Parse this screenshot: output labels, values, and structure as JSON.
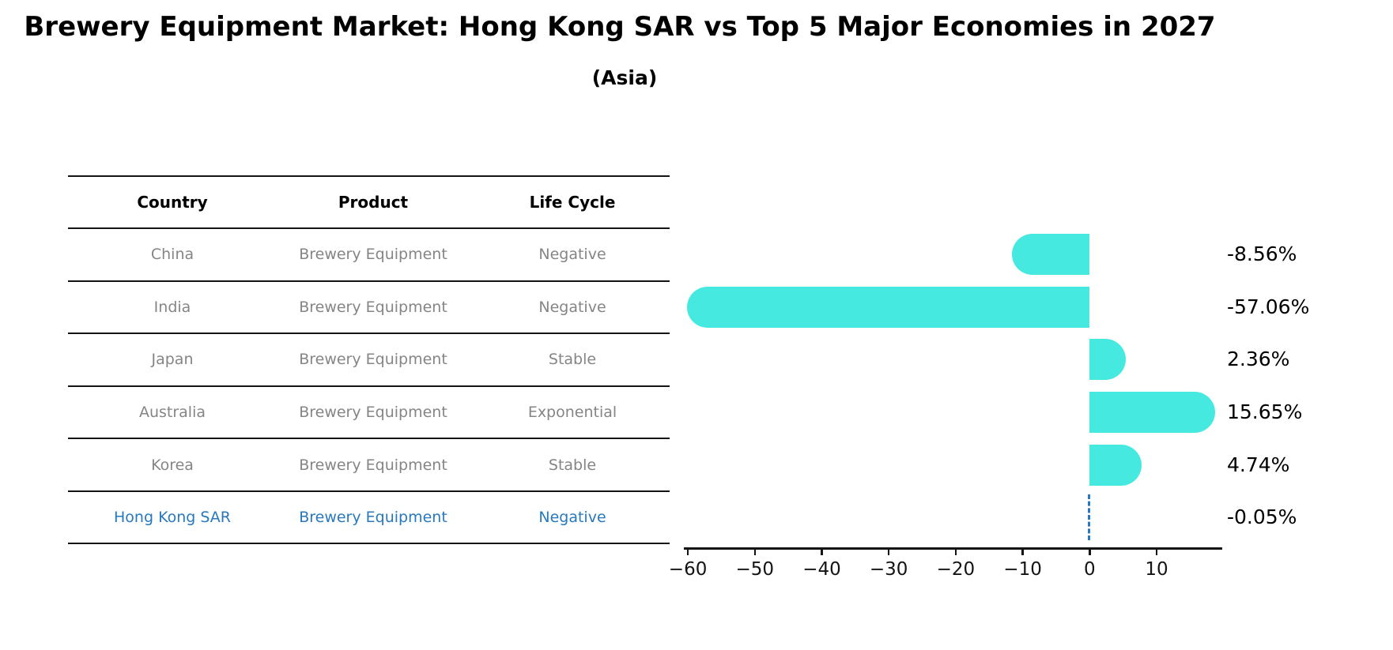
{
  "title": "Brewery Equipment Market: Hong Kong SAR vs Top 5 Major Economies in 2027",
  "subtitle": "(Asia)",
  "table": {
    "columns": [
      "Country",
      "Product",
      "Life Cycle"
    ],
    "rows": [
      {
        "country": "China",
        "product": "Brewery Equipment",
        "life_cycle": "Negative",
        "highlight": false
      },
      {
        "country": "India",
        "product": "Brewery Equipment",
        "life_cycle": "Negative",
        "highlight": false
      },
      {
        "country": "Japan",
        "product": "Brewery Equipment",
        "life_cycle": "Stable",
        "highlight": false
      },
      {
        "country": "Australia",
        "product": "Brewery Equipment",
        "life_cycle": "Exponential",
        "highlight": false
      },
      {
        "country": "Korea",
        "product": "Brewery Equipment",
        "life_cycle": "Stable",
        "highlight": true,
        "_note": ""
      },
      {
        "country": "Hong Kong SAR",
        "product": "Brewery Equipment",
        "life_cycle": "Negative",
        "highlight": true
      }
    ]
  },
  "chart_data": {
    "type": "bar",
    "orientation": "horizontal",
    "title": "Brewery Equipment Market: Hong Kong SAR vs Top 5 Major Economies in 2027",
    "subtitle": "(Asia)",
    "categories": [
      "China",
      "India",
      "Japan",
      "Australia",
      "Korea",
      "Hong Kong SAR"
    ],
    "values": [
      -8.56,
      -57.06,
      2.36,
      15.65,
      4.74,
      -0.05
    ],
    "value_labels": [
      "-8.56%",
      "-57.06%",
      "2.36%",
      "15.65%",
      "4.74%",
      "-0.05%"
    ],
    "xlim": [
      -60.6,
      19.8
    ],
    "x_ticks": [
      -60,
      -50,
      -40,
      -30,
      -20,
      -10,
      0,
      10
    ],
    "x_tick_labels": [
      "−60",
      "−50",
      "−40",
      "−30",
      "−20",
      "−10",
      "0",
      "10"
    ],
    "grid": false,
    "legend": false,
    "bar_color": "#45e9e0",
    "highlight_color": "#2878be",
    "highlight_index": 5,
    "highlight_style": "dashed-zero-line"
  }
}
